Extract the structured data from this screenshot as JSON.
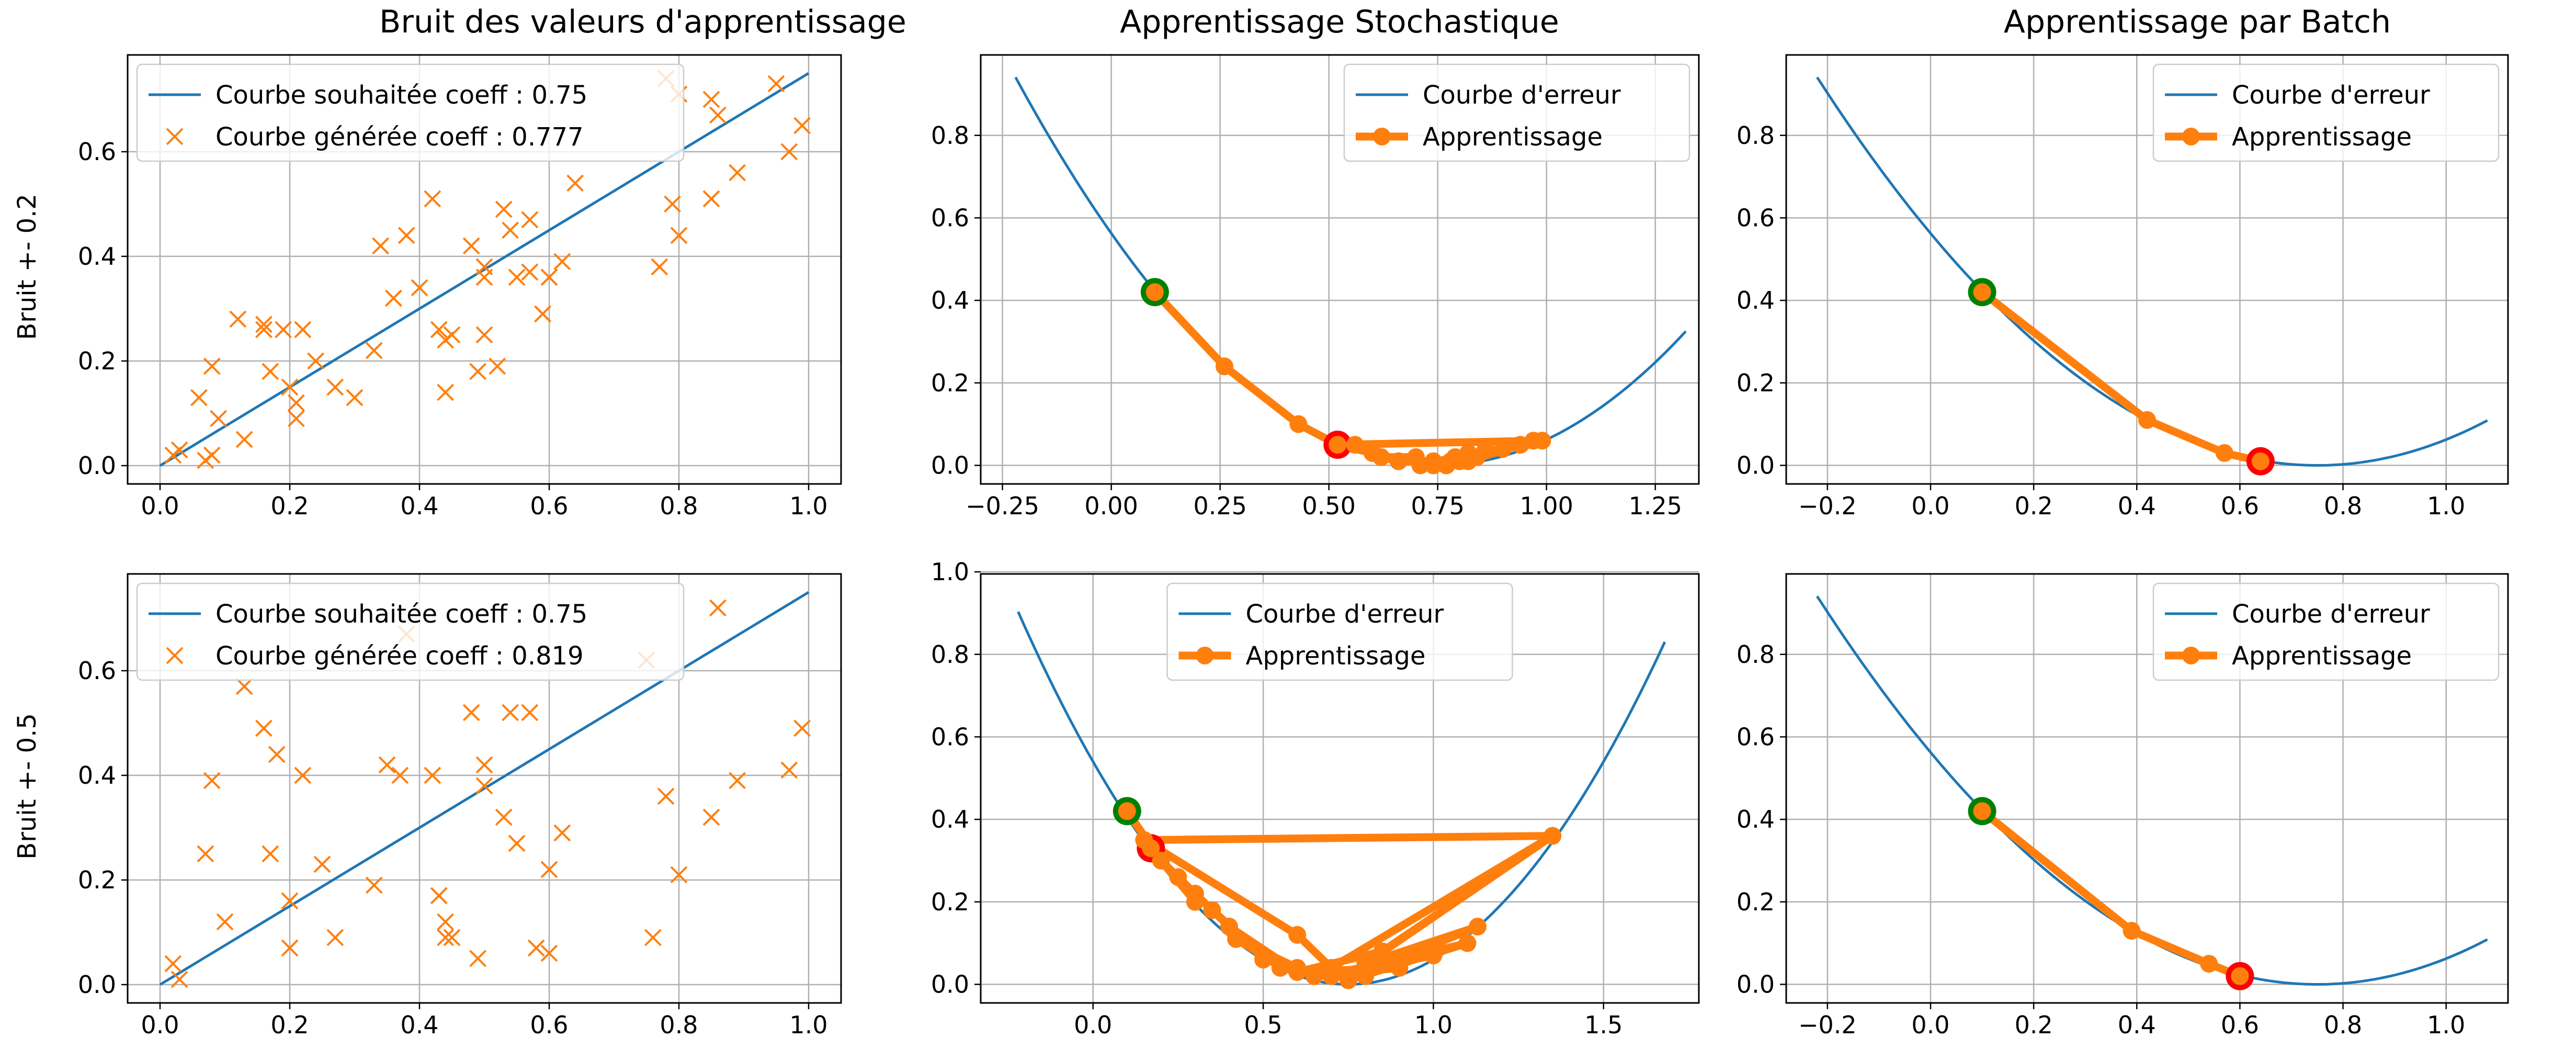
{
  "figure": {
    "row_labels": [
      "Bruit +- 0.2",
      "Bruit +- 0.5"
    ],
    "column_titles": [
      "Bruit des valeurs d'apprentissage",
      "Apprentissage Stochastique",
      "Apprentissage par Batch"
    ]
  },
  "colors": {
    "blue": "#1f77b4",
    "orange": "#ff7f0e",
    "green": "#008000",
    "red": "#ff0000",
    "grid": "#b0b0b0"
  },
  "chart_data": [
    {
      "id": "r0c0",
      "type": "scatter",
      "title": "Bruit des valeurs d'apprentissage",
      "ylabel": "Bruit +- 0.2",
      "xlim": [
        -0.05,
        1.05
      ],
      "ylim": [
        -0.035,
        0.785
      ],
      "xticks": [
        0.0,
        0.2,
        0.4,
        0.6,
        0.8,
        1.0
      ],
      "xtick_labels": [
        "0.0",
        "0.2",
        "0.4",
        "0.6",
        "0.8",
        "1.0"
      ],
      "yticks": [
        0.0,
        0.2,
        0.4,
        0.6
      ],
      "ytick_labels": [
        "0.0",
        "0.2",
        "0.4",
        "0.6"
      ],
      "grid": true,
      "legend_position": "upper-left",
      "legend": [
        "Courbe souhaitée coeff : 0.75",
        "Courbe générée coeff : 0.777"
      ],
      "series": [
        {
          "name": "Courbe souhaitée coeff : 0.75",
          "type": "line",
          "x": [
            0.0,
            1.0
          ],
          "y": [
            0.0,
            0.75
          ]
        },
        {
          "name": "Courbe générée coeff : 0.777",
          "type": "scatter",
          "x": [
            0.02,
            0.03,
            0.07,
            0.08,
            0.06,
            0.09,
            0.08,
            0.13,
            0.12,
            0.16,
            0.17,
            0.19,
            0.2,
            0.21,
            0.22,
            0.21,
            0.16,
            0.24,
            0.27,
            0.3,
            0.33,
            0.34,
            0.36,
            0.36,
            0.38,
            0.4,
            0.42,
            0.43,
            0.44,
            0.44,
            0.45,
            0.48,
            0.49,
            0.5,
            0.5,
            0.5,
            0.52,
            0.53,
            0.54,
            0.55,
            0.57,
            0.57,
            0.59,
            0.59,
            0.6,
            0.6,
            0.62,
            0.64,
            0.77,
            0.78,
            0.79,
            0.8,
            0.8,
            0.85,
            0.85,
            0.86,
            0.89,
            0.95,
            0.97,
            0.99
          ],
          "y": [
            0.02,
            0.03,
            0.01,
            0.02,
            0.13,
            0.09,
            0.19,
            0.05,
            0.28,
            0.27,
            0.18,
            0.26,
            0.15,
            0.12,
            0.26,
            0.09,
            0.26,
            0.2,
            0.15,
            0.13,
            0.22,
            0.42,
            0.32,
            0.32,
            0.44,
            0.34,
            0.51,
            0.26,
            0.24,
            0.14,
            0.25,
            0.42,
            0.18,
            0.25,
            0.38,
            0.36,
            0.19,
            0.49,
            0.45,
            0.36,
            0.37,
            0.47,
            0.29,
            0.29,
            0.36,
            0.36,
            0.39,
            0.54,
            0.38,
            0.74,
            0.5,
            0.44,
            0.71,
            0.51,
            0.7,
            0.67,
            0.56,
            0.73,
            0.6,
            0.65
          ]
        }
      ]
    },
    {
      "id": "r0c1",
      "type": "line",
      "title": "Apprentissage Stochastique",
      "xlim": [
        -0.3,
        1.35
      ],
      "ylim": [
        -0.045,
        0.995
      ],
      "xticks": [
        -0.25,
        0.0,
        0.25,
        0.5,
        0.75,
        1.0,
        1.25
      ],
      "xtick_labels": [
        "−0.25",
        "0.00",
        "0.25",
        "0.50",
        "0.75",
        "1.00",
        "1.25"
      ],
      "yticks": [
        0.0,
        0.2,
        0.4,
        0.6,
        0.8
      ],
      "ytick_labels": [
        "0.0",
        "0.2",
        "0.4",
        "0.6",
        "0.8"
      ],
      "grid": true,
      "legend_position": "upper-right",
      "legend": [
        "Courbe d'erreur",
        "Apprentissage"
      ],
      "error_curve": {
        "a": 1.0,
        "center": 0.75,
        "xmin": -0.22,
        "xmax": 1.32
      },
      "series": [
        {
          "name": "Apprentissage",
          "type": "path",
          "x": [
            0.1,
            0.26,
            0.43,
            0.52,
            0.6,
            0.56,
            0.66,
            0.62,
            0.7,
            0.66,
            0.74,
            0.71,
            0.79,
            0.74,
            0.82,
            0.77,
            0.86,
            0.8,
            0.9,
            0.82,
            0.94,
            0.84,
            0.97,
            0.78,
            0.99,
            0.52
          ],
          "y": [
            0.42,
            0.24,
            0.1,
            0.05,
            0.03,
            0.05,
            0.01,
            0.02,
            0.02,
            0.01,
            0.01,
            0.0,
            0.02,
            0.0,
            0.03,
            0.0,
            0.04,
            0.01,
            0.04,
            0.01,
            0.05,
            0.02,
            0.06,
            0.01,
            0.06,
            0.05
          ]
        }
      ],
      "start_point": {
        "x": 0.1,
        "y": 0.42
      },
      "end_point": {
        "x": 0.52,
        "y": 0.05
      }
    },
    {
      "id": "r0c2",
      "type": "line",
      "title": "Apprentissage par Batch",
      "xlim": [
        -0.28,
        1.12
      ],
      "ylim": [
        -0.045,
        0.995
      ],
      "xticks": [
        -0.2,
        0.0,
        0.2,
        0.4,
        0.6,
        0.8,
        1.0
      ],
      "xtick_labels": [
        "−0.2",
        "0.0",
        "0.2",
        "0.4",
        "0.6",
        "0.8",
        "1.0"
      ],
      "yticks": [
        0.0,
        0.2,
        0.4,
        0.6,
        0.8
      ],
      "ytick_labels": [
        "0.0",
        "0.2",
        "0.4",
        "0.6",
        "0.8"
      ],
      "grid": true,
      "legend_position": "upper-right",
      "legend": [
        "Courbe d'erreur",
        "Apprentissage"
      ],
      "error_curve": {
        "a": 1.0,
        "center": 0.75,
        "xmin": -0.22,
        "xmax": 1.08
      },
      "series": [
        {
          "name": "Apprentissage",
          "type": "path",
          "x": [
            0.1,
            0.42,
            0.57,
            0.64
          ],
          "y": [
            0.42,
            0.11,
            0.03,
            0.01
          ]
        }
      ],
      "start_point": {
        "x": 0.1,
        "y": 0.42
      },
      "end_point": {
        "x": 0.64,
        "y": 0.01
      }
    },
    {
      "id": "r1c0",
      "type": "scatter",
      "ylabel": "Bruit +- 0.5",
      "xlim": [
        -0.05,
        1.05
      ],
      "ylim": [
        -0.035,
        0.785
      ],
      "xticks": [
        0.0,
        0.2,
        0.4,
        0.6,
        0.8,
        1.0
      ],
      "xtick_labels": [
        "0.0",
        "0.2",
        "0.4",
        "0.6",
        "0.8",
        "1.0"
      ],
      "yticks": [
        0.0,
        0.2,
        0.4,
        0.6
      ],
      "ytick_labels": [
        "0.0",
        "0.2",
        "0.4",
        "0.6"
      ],
      "grid": true,
      "legend_position": "upper-left",
      "legend": [
        "Courbe souhaitée coeff : 0.75",
        "Courbe générée coeff : 0.819"
      ],
      "series": [
        {
          "name": "Courbe souhaitée coeff : 0.75",
          "type": "line",
          "x": [
            0.0,
            1.0
          ],
          "y": [
            0.0,
            0.75
          ]
        },
        {
          "name": "Courbe générée coeff : 0.819",
          "type": "scatter",
          "x": [
            0.02,
            0.03,
            0.07,
            0.08,
            0.1,
            0.13,
            0.16,
            0.17,
            0.18,
            0.2,
            0.2,
            0.22,
            0.25,
            0.27,
            0.33,
            0.35,
            0.37,
            0.38,
            0.42,
            0.43,
            0.43,
            0.44,
            0.44,
            0.45,
            0.48,
            0.49,
            0.5,
            0.5,
            0.53,
            0.54,
            0.55,
            0.57,
            0.58,
            0.6,
            0.6,
            0.62,
            0.75,
            0.76,
            0.78,
            0.8,
            0.85,
            0.86,
            0.89,
            0.97,
            0.99
          ],
          "y": [
            0.04,
            0.01,
            0.25,
            0.39,
            0.12,
            0.57,
            0.49,
            0.25,
            0.44,
            0.16,
            0.07,
            0.4,
            0.23,
            0.09,
            0.19,
            0.42,
            0.4,
            0.67,
            0.4,
            0.17,
            0.17,
            0.12,
            0.09,
            0.09,
            0.52,
            0.05,
            0.42,
            0.38,
            0.32,
            0.52,
            0.27,
            0.52,
            0.07,
            0.06,
            0.22,
            0.29,
            0.62,
            0.09,
            0.36,
            0.21,
            0.32,
            0.72,
            0.39,
            0.41,
            0.49
          ]
        }
      ]
    },
    {
      "id": "r1c1",
      "type": "line",
      "xlim": [
        -0.33,
        1.78
      ],
      "ylim": [
        -0.045,
        0.995
      ],
      "xticks": [
        0.0,
        0.5,
        1.0,
        1.5
      ],
      "xtick_labels": [
        "0.0",
        "0.5",
        "1.0",
        "1.5"
      ],
      "yticks": [
        0.0,
        0.2,
        0.4,
        0.6,
        0.8,
        1.0
      ],
      "ytick_labels": [
        "0.0",
        "0.2",
        "0.4",
        "0.6",
        "0.8",
        "1.0"
      ],
      "grid": true,
      "legend_position": "upper-center",
      "legend": [
        "Courbe d'erreur",
        "Apprentissage"
      ],
      "error_curve": {
        "a": 0.96,
        "center": 0.75,
        "xmin": -0.22,
        "xmax": 1.68
      },
      "series": [
        {
          "name": "Apprentissage",
          "type": "path",
          "x": [
            0.1,
            0.2,
            0.3,
            0.25,
            0.4,
            0.35,
            0.5,
            0.42,
            0.6,
            0.5,
            0.7,
            0.55,
            0.8,
            0.6,
            0.9,
            0.65,
            1.0,
            0.7,
            1.1,
            0.75,
            1.13,
            0.8,
            1.35,
            0.7,
            0.6,
            0.15,
            1.35,
            0.85,
            0.6,
            0.4,
            0.3,
            0.2,
            0.17
          ],
          "y": [
            0.42,
            0.3,
            0.2,
            0.26,
            0.14,
            0.18,
            0.07,
            0.11,
            0.04,
            0.06,
            0.02,
            0.04,
            0.02,
            0.03,
            0.04,
            0.02,
            0.07,
            0.02,
            0.1,
            0.01,
            0.14,
            0.05,
            0.36,
            0.04,
            0.12,
            0.35,
            0.36,
            0.08,
            0.03,
            0.14,
            0.22,
            0.3,
            0.33
          ]
        }
      ],
      "start_point": {
        "x": 0.1,
        "y": 0.42
      },
      "end_point": {
        "x": 0.17,
        "y": 0.33
      }
    },
    {
      "id": "r1c2",
      "type": "line",
      "xlim": [
        -0.28,
        1.12
      ],
      "ylim": [
        -0.045,
        0.995
      ],
      "xticks": [
        -0.2,
        0.0,
        0.2,
        0.4,
        0.6,
        0.8,
        1.0
      ],
      "xtick_labels": [
        "−0.2",
        "0.0",
        "0.2",
        "0.4",
        "0.6",
        "0.8",
        "1.0"
      ],
      "yticks": [
        0.0,
        0.2,
        0.4,
        0.6,
        0.8
      ],
      "ytick_labels": [
        "0.0",
        "0.2",
        "0.4",
        "0.6",
        "0.8"
      ],
      "grid": true,
      "legend_position": "upper-right",
      "legend": [
        "Courbe d'erreur",
        "Apprentissage"
      ],
      "error_curve": {
        "a": 1.0,
        "center": 0.75,
        "xmin": -0.22,
        "xmax": 1.08
      },
      "series": [
        {
          "name": "Apprentissage",
          "type": "path",
          "x": [
            0.1,
            0.39,
            0.54,
            0.6
          ],
          "y": [
            0.42,
            0.13,
            0.05,
            0.02
          ]
        }
      ],
      "start_point": {
        "x": 0.1,
        "y": 0.42
      },
      "end_point": {
        "x": 0.6,
        "y": 0.02
      }
    }
  ]
}
